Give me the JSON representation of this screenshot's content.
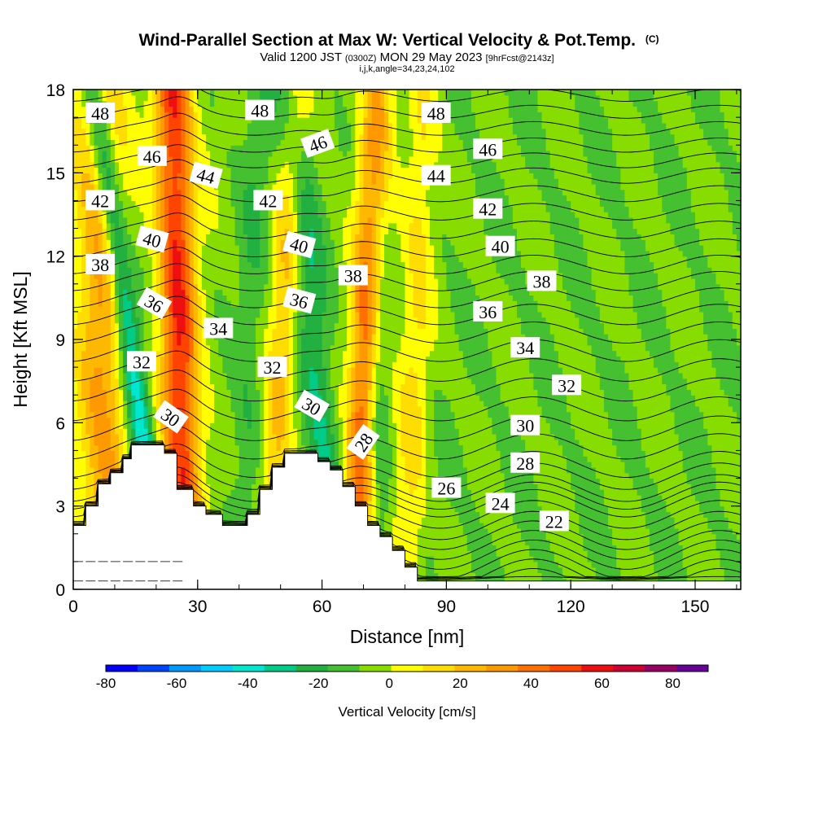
{
  "chart_data": {
    "type": "heatmap",
    "title": "Wind-Parallel Section at Max W: Vertical Velocity & Pot.Temp.",
    "title_mark": "(C)",
    "subtitle": {
      "valid": "Valid 1200 JST",
      "utc": "(0300Z)",
      "date": "MON 29 May 2023",
      "fcst": "[9hrFcst@2143z]",
      "indices": "i,j,k,angle=34,23,24,102"
    },
    "xlabel": "Distance [nm]",
    "ylabel": "Height [Kft MSL]",
    "xlim": [
      0,
      161
    ],
    "ylim": [
      0,
      18
    ],
    "x_ticks": [
      0,
      30,
      60,
      90,
      120,
      150
    ],
    "y_ticks": [
      0,
      3,
      6,
      9,
      12,
      15,
      18
    ],
    "colorbar": {
      "label": "Vertical Velocity [cm/s]",
      "range": [
        -80,
        90
      ],
      "step": 10,
      "tick_values": [
        -80,
        -60,
        -40,
        -20,
        0,
        20,
        40,
        60,
        80
      ],
      "colors": [
        "#0000ff",
        "#0044ff",
        "#0099ff",
        "#00ccff",
        "#00e6d0",
        "#00cc88",
        "#22b040",
        "#44c030",
        "#88dd00",
        "#ffff00",
        "#ffdd00",
        "#ffb800",
        "#ff9900",
        "#ff7000",
        "#ff4400",
        "#ee1010",
        "#cc0033",
        "#990066",
        "#660099"
      ]
    },
    "terrain": [
      [
        0,
        2.3
      ],
      [
        3,
        2.3
      ],
      [
        3,
        3
      ],
      [
        6,
        3
      ],
      [
        6,
        3.8
      ],
      [
        9,
        3.8
      ],
      [
        9,
        4.2
      ],
      [
        12,
        4.2
      ],
      [
        12,
        4.7
      ],
      [
        14,
        4.7
      ],
      [
        14,
        5.2
      ],
      [
        22,
        5.2
      ],
      [
        22,
        4.9
      ],
      [
        25,
        4.9
      ],
      [
        25,
        3.6
      ],
      [
        29,
        3.6
      ],
      [
        29,
        3.0
      ],
      [
        32,
        3.0
      ],
      [
        32,
        2.7
      ],
      [
        36,
        2.7
      ],
      [
        36,
        2.3
      ],
      [
        42,
        2.3
      ],
      [
        42,
        2.7
      ],
      [
        45,
        2.7
      ],
      [
        45,
        3.6
      ],
      [
        48,
        3.6
      ],
      [
        48,
        4.4
      ],
      [
        51,
        4.4
      ],
      [
        51,
        4.9
      ],
      [
        59,
        4.9
      ],
      [
        59,
        4.6
      ],
      [
        62,
        4.6
      ],
      [
        62,
        4.3
      ],
      [
        65,
        4.3
      ],
      [
        65,
        3.7
      ],
      [
        68,
        3.7
      ],
      [
        68,
        3.0
      ],
      [
        71,
        3.0
      ],
      [
        71,
        2.3
      ],
      [
        74,
        2.3
      ],
      [
        74,
        1.9
      ],
      [
        77,
        1.9
      ],
      [
        77,
        1.4
      ],
      [
        80,
        1.4
      ],
      [
        80,
        0.8
      ],
      [
        83,
        0.8
      ],
      [
        83,
        0.3
      ],
      [
        161,
        0.3
      ]
    ],
    "ridges": {
      "up": [
        {
          "x": 24,
          "w": 4.5,
          "amp": 65,
          "x_top": 24,
          "x_bottom": 27
        },
        {
          "x": 68,
          "w": 3.5,
          "amp": 55,
          "x_top": 73,
          "x_bottom": 68
        },
        {
          "x": 8,
          "w": 6,
          "amp": 38,
          "x_top": 6,
          "x_bottom": 8
        },
        {
          "x": 50,
          "w": 3.5,
          "amp": 28,
          "x_top": 54,
          "x_bottom": 47
        },
        {
          "x": 80,
          "w": 4,
          "amp": 18,
          "x_top": 85,
          "x_bottom": 80
        }
      ],
      "down": [
        {
          "x": 20,
          "w": 3,
          "amp": -45,
          "x_top": 5,
          "x_bottom": 22
        },
        {
          "x": 61,
          "w": 4,
          "amp": -25,
          "x_top": 53,
          "x_bottom": 63
        },
        {
          "x": 73,
          "w": 3,
          "amp": -18,
          "x_top": 72,
          "x_bottom": 74
        },
        {
          "x": 40,
          "w": 4,
          "amp": -12,
          "x_top": 45,
          "x_bottom": 40
        }
      ]
    },
    "theta_label_values": [
      22,
      24,
      26,
      28,
      30,
      32,
      34,
      36,
      38,
      40,
      42,
      44,
      46,
      48
    ],
    "contour_labels": [
      {
        "text": "48",
        "x": 6.5,
        "y": 17.15,
        "angle": 0
      },
      {
        "text": "46",
        "x": 19,
        "y": 15.6,
        "angle": 0
      },
      {
        "text": "44",
        "x": 32,
        "y": 14.9,
        "angle": 15
      },
      {
        "text": "42",
        "x": 6.5,
        "y": 14.0,
        "angle": 0
      },
      {
        "text": "40",
        "x": 19,
        "y": 12.6,
        "angle": 15
      },
      {
        "text": "38",
        "x": 6.5,
        "y": 11.7,
        "angle": 0
      },
      {
        "text": "36",
        "x": 19.5,
        "y": 10.3,
        "angle": 30
      },
      {
        "text": "34",
        "x": 35,
        "y": 9.4,
        "angle": 0
      },
      {
        "text": "32",
        "x": 16.5,
        "y": 8.2,
        "angle": 0
      },
      {
        "text": "30",
        "x": 23.5,
        "y": 6.2,
        "angle": 35
      },
      {
        "text": "48",
        "x": 45,
        "y": 17.25,
        "angle": 0
      },
      {
        "text": "46",
        "x": 59,
        "y": 16.05,
        "angle": -20
      },
      {
        "text": "42",
        "x": 47,
        "y": 14.0,
        "angle": 0
      },
      {
        "text": "40",
        "x": 54.5,
        "y": 12.4,
        "angle": 15
      },
      {
        "text": "38",
        "x": 67.5,
        "y": 11.3,
        "angle": 0
      },
      {
        "text": "36",
        "x": 54.5,
        "y": 10.4,
        "angle": 15
      },
      {
        "text": "32",
        "x": 48,
        "y": 8.0,
        "angle": 0
      },
      {
        "text": "30",
        "x": 57.5,
        "y": 6.6,
        "angle": 30
      },
      {
        "text": "28",
        "x": 70,
        "y": 5.3,
        "angle": -55
      },
      {
        "text": "48",
        "x": 87.5,
        "y": 17.15,
        "angle": 0
      },
      {
        "text": "46",
        "x": 100,
        "y": 15.85,
        "angle": 0
      },
      {
        "text": "44",
        "x": 87.5,
        "y": 14.9,
        "angle": 0
      },
      {
        "text": "42",
        "x": 100,
        "y": 13.7,
        "angle": 0
      },
      {
        "text": "40",
        "x": 103,
        "y": 12.35,
        "angle": 0
      },
      {
        "text": "38",
        "x": 113,
        "y": 11.1,
        "angle": 0
      },
      {
        "text": "36",
        "x": 100,
        "y": 10.0,
        "angle": 0
      },
      {
        "text": "34",
        "x": 109,
        "y": 8.7,
        "angle": 0
      },
      {
        "text": "32",
        "x": 119,
        "y": 7.35,
        "angle": 0
      },
      {
        "text": "30",
        "x": 109,
        "y": 5.9,
        "angle": 0
      },
      {
        "text": "28",
        "x": 109,
        "y": 4.55,
        "angle": 0
      },
      {
        "text": "26",
        "x": 90,
        "y": 3.65,
        "angle": 0
      },
      {
        "text": "24",
        "x": 103,
        "y": 3.1,
        "angle": 0
      },
      {
        "text": "22",
        "x": 116,
        "y": 2.45,
        "angle": 0
      }
    ]
  }
}
